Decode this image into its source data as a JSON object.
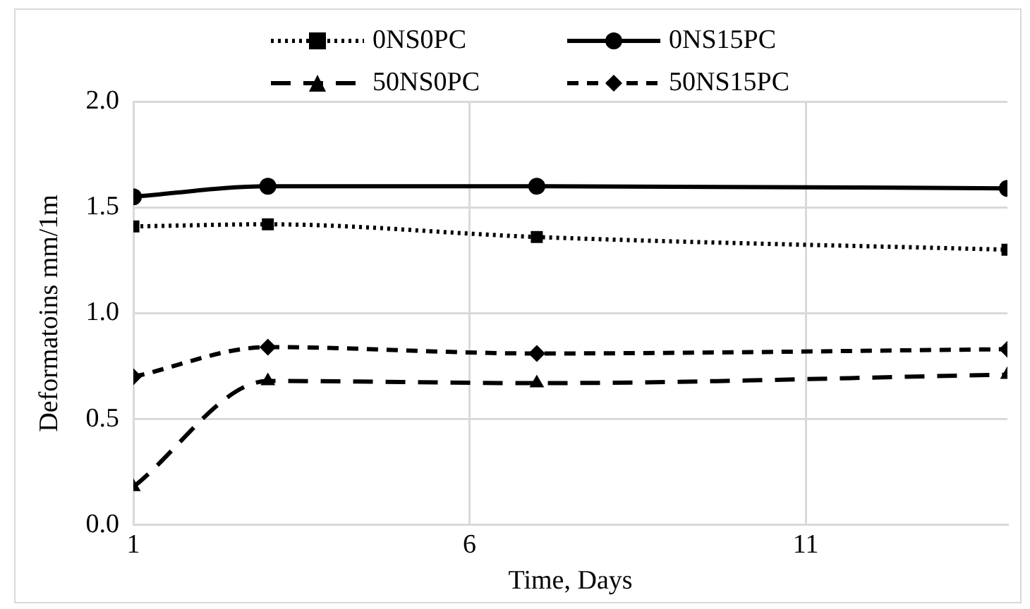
{
  "chart_data": {
    "type": "line",
    "xlabel": "Time, Days",
    "ylabel": "Deformatoins mm/1m",
    "x": [
      1,
      3,
      7,
      14
    ],
    "xlim": [
      1,
      14
    ],
    "xticks": [
      1,
      6,
      11
    ],
    "ylim": [
      0,
      2
    ],
    "yticks": [
      {
        "value": 0,
        "label": "0.0"
      },
      {
        "value": 0.5,
        "label": "0.5"
      },
      {
        "value": 1,
        "label": "1.0"
      },
      {
        "value": 1.5,
        "label": "1.5"
      },
      {
        "value": 2,
        "label": "2.0"
      }
    ],
    "grid": true,
    "legend": "top",
    "series": [
      {
        "name": "0NS0PC",
        "color": "#000000",
        "marker": "square",
        "line_style": "dotted",
        "values": [
          1.41,
          1.42,
          1.36,
          1.3
        ]
      },
      {
        "name": "0NS15PC",
        "color": "#000000",
        "marker": "circle",
        "line_style": "solid",
        "values": [
          1.55,
          1.6,
          1.6,
          1.59
        ]
      },
      {
        "name": "50NS0PC",
        "color": "#000000",
        "marker": "triangle",
        "line_style": "dashed",
        "values": [
          0.18,
          0.68,
          0.67,
          0.71
        ]
      },
      {
        "name": "50NS15PC",
        "color": "#000000",
        "marker": "diamond",
        "line_style": "dashed",
        "values": [
          0.7,
          0.84,
          0.81,
          0.83
        ]
      }
    ]
  }
}
